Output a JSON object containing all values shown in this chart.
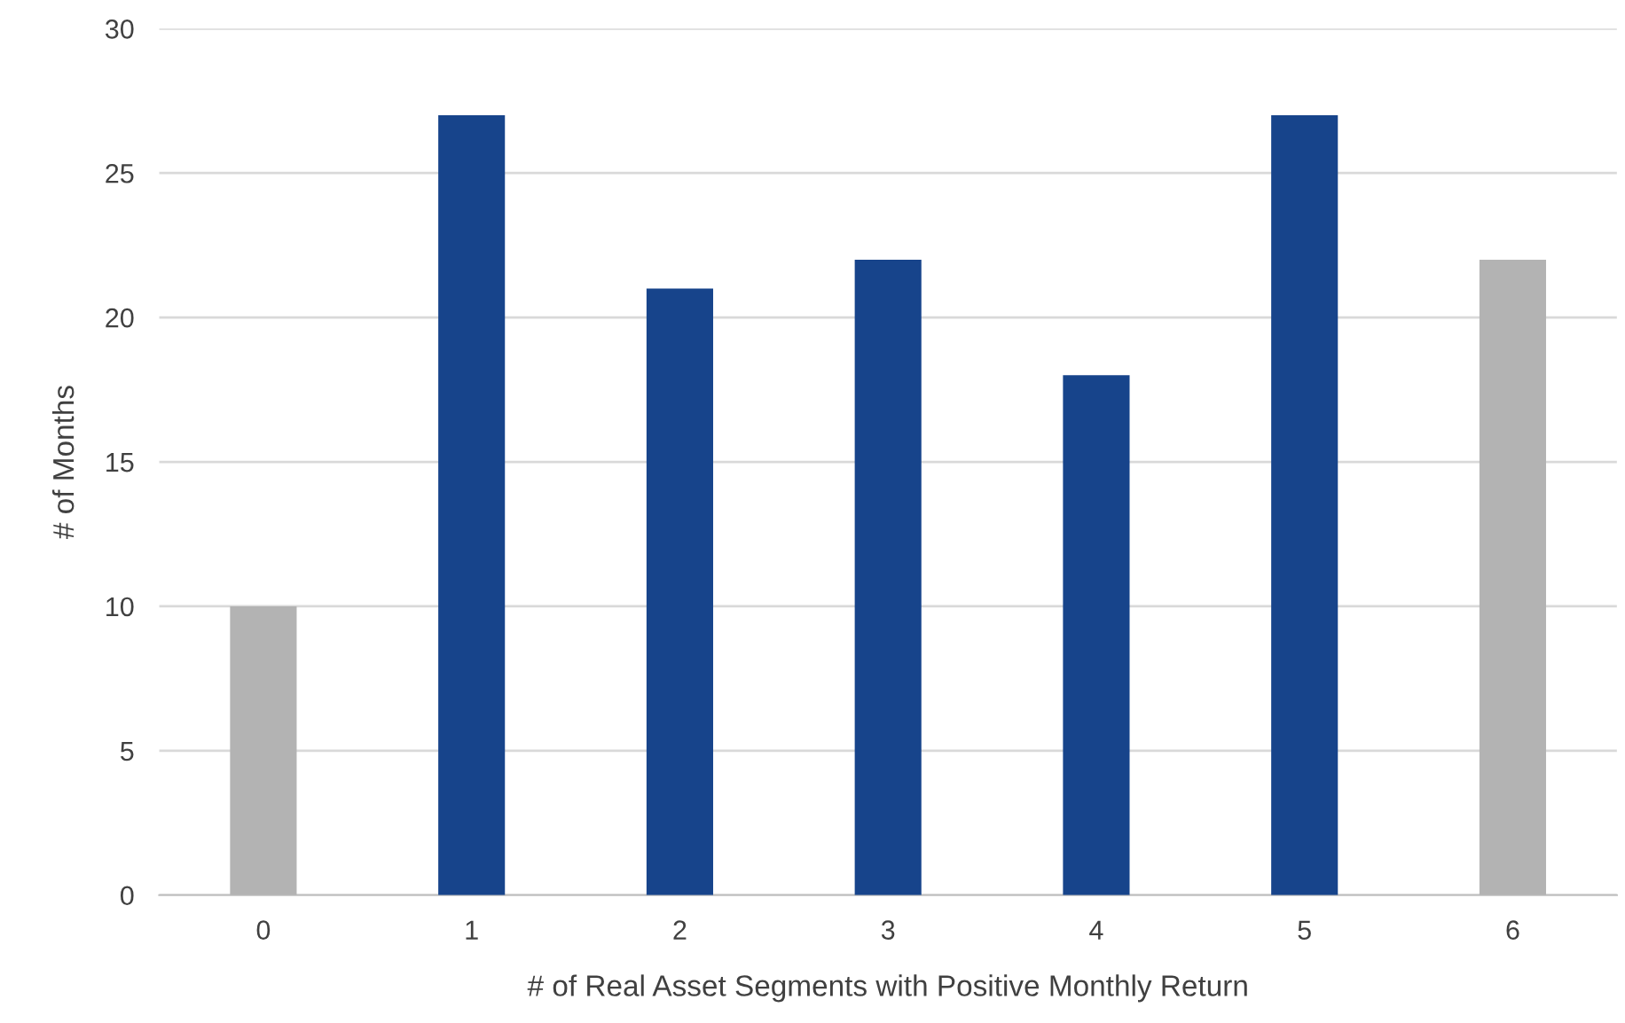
{
  "chart_data": {
    "type": "bar",
    "xlabel": "# of Real Asset Segments with Positive Monthly Return",
    "ylabel": "# of Months",
    "categories": [
      "0",
      "1",
      "2",
      "3",
      "4",
      "5",
      "6"
    ],
    "values": [
      10,
      27,
      21,
      22,
      18,
      27,
      22
    ],
    "colors": [
      "#b3b3b3",
      "#17448b",
      "#17448b",
      "#17448b",
      "#17448b",
      "#17448b",
      "#b3b3b3"
    ],
    "ylim": [
      0,
      30
    ],
    "yticks": [
      0,
      5,
      10,
      15,
      20,
      25,
      30
    ],
    "grid": "y"
  }
}
